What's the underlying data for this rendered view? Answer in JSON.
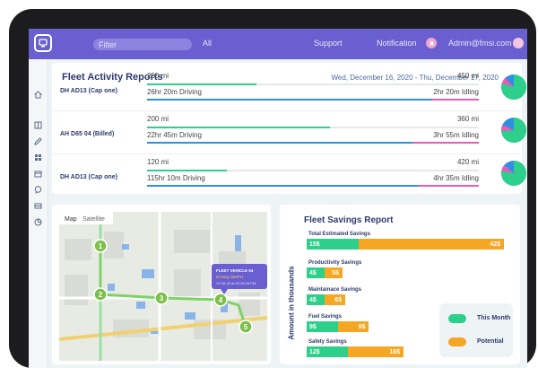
{
  "topbar": {
    "filter_placeholder": "Filter",
    "all_label": "All",
    "support_label": "Support",
    "notification_label": "Notification",
    "admin_label": "Admin@fmsi.com"
  },
  "activity": {
    "title": "Fleet Activity Reports",
    "date_range": "Wed, December 16, 2020 - Thu, December 17, 2020",
    "rows": [
      {
        "label": "DH AD13 (Cap one)",
        "dist_left": "250 mi",
        "dist_right": "450 mi",
        "drive_left": "26hr 20m Driving",
        "drive_right": "2hr 20m Idling",
        "dist_pct": 33,
        "drive_pct": 86,
        "pie_green_pct": 80
      },
      {
        "label": "AH D65 04 (Billed)",
        "dist_left": "200 mi",
        "dist_right": "360 mi",
        "drive_left": "22hr 45m Driving",
        "drive_right": "3hr 55m Idling",
        "dist_pct": 55,
        "drive_pct": 80,
        "pie_green_pct": 74
      },
      {
        "label": "DH AD13 (Cap one)",
        "dist_left": "120 mi",
        "dist_right": "420 mi",
        "drive_left": "115hr 10m Driving",
        "drive_right": "4hr 35m Idling",
        "dist_pct": 24,
        "drive_pct": 82,
        "pie_green_pct": 78
      }
    ]
  },
  "map": {
    "tab_map": "Map",
    "tab_satellite": "Satellite",
    "vehicle_name": "FLEET VEHICLE 04",
    "vehicle_speed": "Driving 23MPH",
    "vehicle_time": "12-08-20 at 02:25:16 PM",
    "stops": [
      "1",
      "2",
      "3",
      "4",
      "5"
    ]
  },
  "savings": {
    "title": "Fleet Savings Report",
    "y_axis_label": "Amount in thousands",
    "items": [
      {
        "label": "Total Estimated Savings",
        "month": 15,
        "potential": 42,
        "month_text": "15$",
        "potential_text": "42$"
      },
      {
        "label": "Productivity Savings",
        "month": 4,
        "potential": 5,
        "month_text": "4$",
        "potential_text": "5$"
      },
      {
        "label": "Maintainace Savings",
        "month": 4,
        "potential": 6,
        "month_text": "4$",
        "potential_text": "6$"
      },
      {
        "label": "Fuel Savings",
        "month": 9,
        "potential": 9,
        "month_text": "9$",
        "potential_text": "9$"
      },
      {
        "label": "Safety Savings",
        "month": 12,
        "potential": 16,
        "month_text": "12$",
        "potential_text": "16$"
      }
    ],
    "legend": {
      "this_month": "This Month",
      "potential": "Potential"
    }
  },
  "colors": {
    "green": "#2ecf8a",
    "orange": "#f5a623",
    "blue": "#2f8fe0",
    "pink": "#e65cb8",
    "purple": "#6a5fd0"
  }
}
